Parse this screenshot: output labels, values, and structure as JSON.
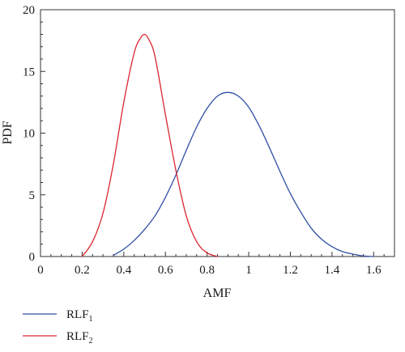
{
  "chart_data": {
    "type": "line",
    "title": "",
    "xlabel": "AMF",
    "ylabel": "PDF",
    "xlim": [
      0,
      1.7
    ],
    "ylim": [
      0,
      20
    ],
    "x_ticks": [
      0,
      0.2,
      0.4,
      0.6,
      0.8,
      1,
      1.2,
      1.4,
      1.6
    ],
    "x_tick_labels": [
      "0",
      "0.2",
      "0.4",
      "0.6",
      "0.8",
      "1",
      "1.2",
      "1.4",
      "1.6"
    ],
    "y_ticks": [
      0,
      5,
      10,
      15,
      20
    ],
    "y_tick_labels": [
      "0",
      "5",
      "10",
      "15",
      "20"
    ],
    "grid": false,
    "legend_position": "bottom-left",
    "series": [
      {
        "name": "RLF",
        "name_sub": "1",
        "color": "#2e4fa3",
        "x": [
          0.35,
          0.4,
          0.45,
          0.5,
          0.55,
          0.6,
          0.65,
          0.7,
          0.75,
          0.8,
          0.85,
          0.9,
          0.95,
          1.0,
          1.05,
          1.1,
          1.15,
          1.2,
          1.25,
          1.3,
          1.35,
          1.4,
          1.45,
          1.5,
          1.55,
          1.6
        ],
        "y": [
          0.1,
          0.6,
          1.3,
          2.2,
          3.3,
          4.8,
          6.6,
          8.6,
          10.5,
          12.0,
          13.0,
          13.3,
          13.0,
          12.1,
          10.6,
          8.8,
          6.9,
          5.1,
          3.6,
          2.3,
          1.4,
          0.8,
          0.4,
          0.2,
          0.05,
          0.0
        ]
      },
      {
        "name": "RLF",
        "name_sub": "2",
        "color": "#d9262e",
        "x": [
          0.2,
          0.25,
          0.3,
          0.35,
          0.4,
          0.45,
          0.48,
          0.5,
          0.52,
          0.55,
          0.6,
          0.65,
          0.7,
          0.75,
          0.8,
          0.85
        ],
        "y": [
          0.0,
          1.2,
          3.5,
          7.5,
          12.5,
          16.5,
          17.7,
          18.0,
          17.6,
          16.2,
          11.5,
          7.0,
          3.3,
          1.2,
          0.3,
          0.0
        ]
      }
    ]
  }
}
